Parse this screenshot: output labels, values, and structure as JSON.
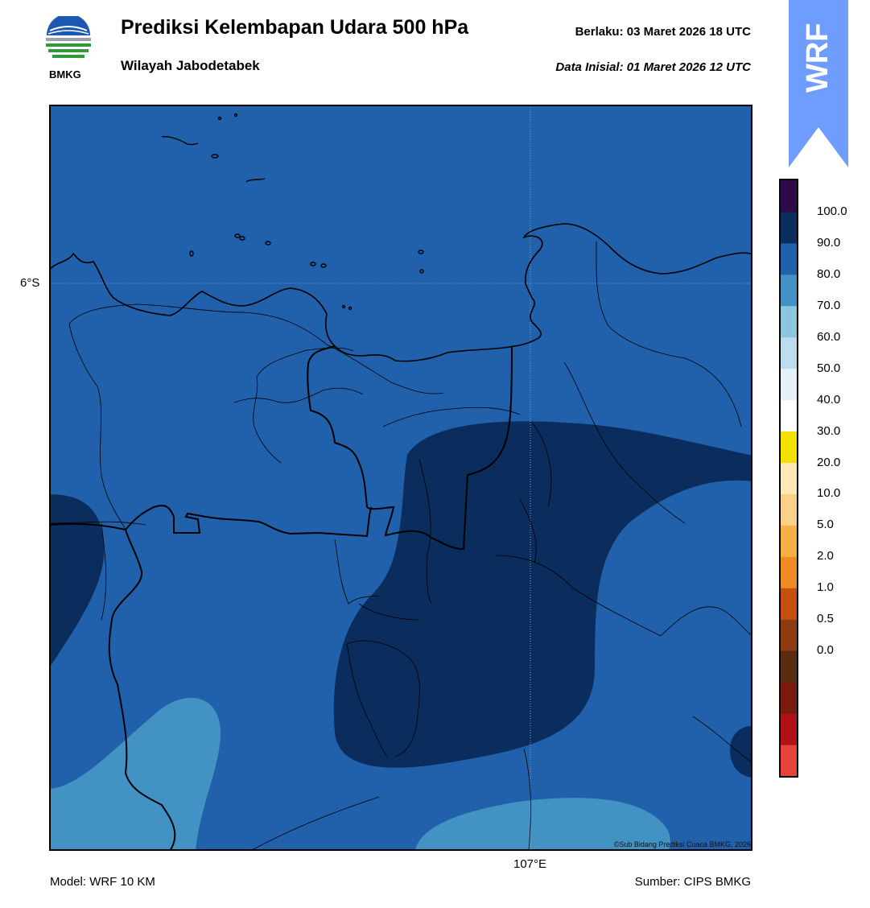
{
  "header": {
    "title": "Prediksi Kelembapan Udara 500 hPa",
    "subtitle": "Wilayah Jabodetabek",
    "valid": "Berlaku:  03 Maret 2026 18 UTC",
    "initial": "Data Inisial:  01 Maret 2026 12 UTC",
    "logo_text": "BMKG"
  },
  "map": {
    "lat_label": "6°S",
    "lon_label": "107°E",
    "copyright": "©Sub Bidang Prediksi Cuaca BMKG, 2026",
    "field": "relative humidity 500 hPa",
    "dominant_class": "80.0–90.0",
    "region_classes": [
      "70.0–80.0",
      "80.0–90.0",
      "90.0–100.0"
    ]
  },
  "footer": {
    "model": "Model: WRF 10 KM",
    "source": "Sumber: CIPS BMKG"
  },
  "badge": {
    "text": "WRF",
    "color": "#6e9cff"
  },
  "colorbar": {
    "labels": [
      "100.0",
      "90.0",
      "80.0",
      "70.0",
      "60.0",
      "50.0",
      "40.0",
      "30.0",
      "20.0",
      "10.0",
      "5.0",
      "2.0",
      "1.0",
      "0.5",
      "0.0"
    ],
    "colors": [
      "#e8433a",
      "#b01218",
      "#7b1a0e",
      "#5a2c10",
      "#8e3a10",
      "#c8500e",
      "#f08a22",
      "#f6b046",
      "#fbd088",
      "#fde8b6",
      "#f2e000",
      "#ffffff",
      "#e6f2fa",
      "#bcdded",
      "#8cc6de",
      "#4392c4",
      "#2160aa",
      "#0a2d5e",
      "#2e0a4a"
    ]
  }
}
